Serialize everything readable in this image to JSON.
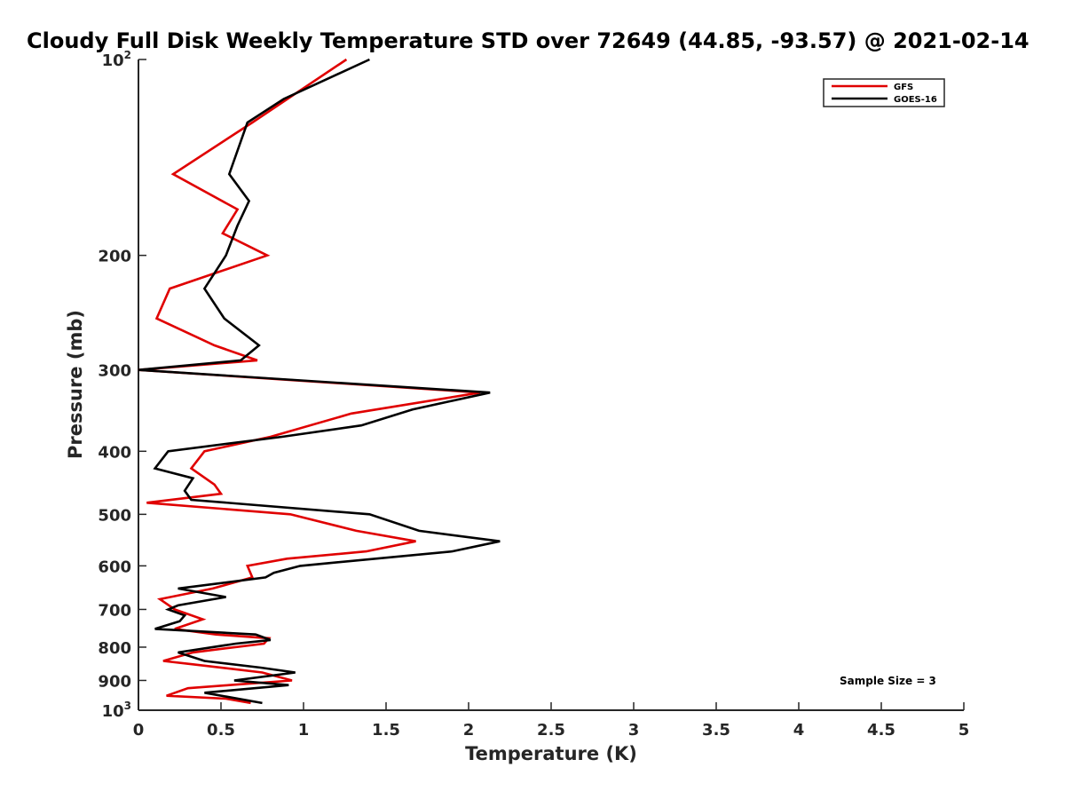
{
  "chart_data": {
    "type": "line",
    "title": "Cloudy Full Disk Weekly Temperature STD over 72649 (44.85, -93.57) @ 2021-02-14",
    "xlabel": "Temperature (K)",
    "ylabel": "Pressure (mb)",
    "xlim": [
      0,
      5
    ],
    "ylim": [
      100,
      1000
    ],
    "y_scale": "log",
    "y_reversed": true,
    "grid": false,
    "legend_position": "top-right",
    "x_ticks": [
      {
        "value": 0,
        "label": "0"
      },
      {
        "value": 0.5,
        "label": "0.5"
      },
      {
        "value": 1,
        "label": "1"
      },
      {
        "value": 1.5,
        "label": "1.5"
      },
      {
        "value": 2,
        "label": "2"
      },
      {
        "value": 2.5,
        "label": "2.5"
      },
      {
        "value": 3,
        "label": "3"
      },
      {
        "value": 3.5,
        "label": "3.5"
      },
      {
        "value": 4,
        "label": "4"
      },
      {
        "value": 4.5,
        "label": "4.5"
      },
      {
        "value": 5,
        "label": "5"
      }
    ],
    "y_ticks": [
      {
        "value": 100,
        "base": "10",
        "exp": "2"
      },
      {
        "value": 200,
        "label": "200"
      },
      {
        "value": 300,
        "label": "300"
      },
      {
        "value": 400,
        "label": "400"
      },
      {
        "value": 500,
        "label": "500"
      },
      {
        "value": 600,
        "label": "600"
      },
      {
        "value": 700,
        "label": "700"
      },
      {
        "value": 800,
        "label": "800"
      },
      {
        "value": 900,
        "label": "900"
      },
      {
        "value": 1000,
        "base": "10",
        "exp": "3"
      }
    ],
    "annotation": "Sample Size = 3",
    "series": [
      {
        "name": "GFS",
        "color": "#e00000",
        "points": [
          [
            1.26,
            100
          ],
          [
            0.69,
            125
          ],
          [
            0.21,
            150
          ],
          [
            0.6,
            170
          ],
          [
            0.51,
            185
          ],
          [
            0.78,
            200
          ],
          [
            0.19,
            225
          ],
          [
            0.11,
            250
          ],
          [
            0.46,
            275
          ],
          [
            0.72,
            290
          ],
          [
            0.0,
            300
          ],
          [
            2.07,
            325
          ],
          [
            1.29,
            350
          ],
          [
            0.8,
            380
          ],
          [
            0.4,
            400
          ],
          [
            0.32,
            425
          ],
          [
            0.46,
            450
          ],
          [
            0.5,
            465
          ],
          [
            0.05,
            480
          ],
          [
            0.92,
            500
          ],
          [
            1.32,
            530
          ],
          [
            1.68,
            550
          ],
          [
            1.38,
            570
          ],
          [
            0.9,
            585
          ],
          [
            0.66,
            600
          ],
          [
            0.69,
            625
          ],
          [
            0.45,
            650
          ],
          [
            0.13,
            675
          ],
          [
            0.22,
            700
          ],
          [
            0.39,
            725
          ],
          [
            0.22,
            750
          ],
          [
            0.47,
            765
          ],
          [
            0.79,
            775
          ],
          [
            0.76,
            790
          ],
          [
            0.33,
            815
          ],
          [
            0.15,
            840
          ],
          [
            0.33,
            850
          ],
          [
            0.75,
            875
          ],
          [
            0.93,
            900
          ],
          [
            0.55,
            915
          ],
          [
            0.3,
            925
          ],
          [
            0.17,
            950
          ],
          [
            0.53,
            960
          ],
          [
            0.68,
            975
          ]
        ]
      },
      {
        "name": "GOES-16",
        "color": "#000000",
        "points": [
          [
            1.4,
            100
          ],
          [
            0.88,
            115
          ],
          [
            0.66,
            125
          ],
          [
            0.55,
            150
          ],
          [
            0.67,
            165
          ],
          [
            0.6,
            180
          ],
          [
            0.53,
            200
          ],
          [
            0.4,
            225
          ],
          [
            0.52,
            250
          ],
          [
            0.73,
            275
          ],
          [
            0.62,
            290
          ],
          [
            0.0,
            300
          ],
          [
            2.13,
            325
          ],
          [
            1.66,
            345
          ],
          [
            1.35,
            365
          ],
          [
            0.87,
            380
          ],
          [
            0.18,
            400
          ],
          [
            0.1,
            425
          ],
          [
            0.33,
            440
          ],
          [
            0.28,
            460
          ],
          [
            0.32,
            475
          ],
          [
            1.4,
            500
          ],
          [
            1.7,
            530
          ],
          [
            2.19,
            550
          ],
          [
            1.9,
            570
          ],
          [
            0.98,
            600
          ],
          [
            0.82,
            615
          ],
          [
            0.77,
            625
          ],
          [
            0.24,
            650
          ],
          [
            0.53,
            670
          ],
          [
            0.24,
            690
          ],
          [
            0.18,
            700
          ],
          [
            0.28,
            715
          ],
          [
            0.25,
            730
          ],
          [
            0.1,
            750
          ],
          [
            0.71,
            765
          ],
          [
            0.8,
            780
          ],
          [
            0.59,
            790
          ],
          [
            0.24,
            815
          ],
          [
            0.4,
            840
          ],
          [
            0.74,
            860
          ],
          [
            0.95,
            875
          ],
          [
            0.58,
            900
          ],
          [
            0.91,
            915
          ],
          [
            0.4,
            940
          ],
          [
            0.75,
            975
          ]
        ]
      }
    ]
  }
}
